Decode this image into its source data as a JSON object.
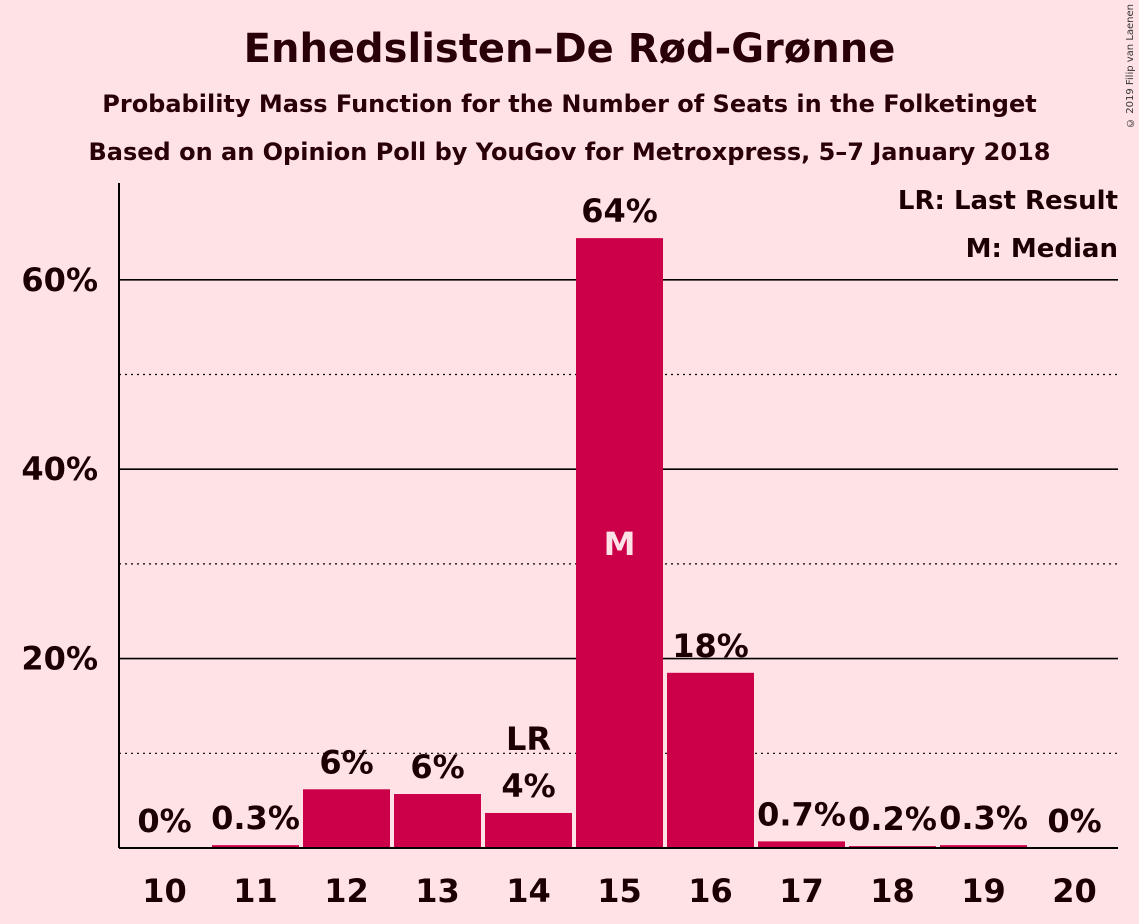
{
  "title": "Enhedslisten–De Rød-Grønne",
  "subtitle": "Probability Mass Function for the Number of Seats in the Folketinget",
  "subtitle2": "Based on an Opinion Poll by YouGov for Metroxpress, 5–7 January 2018",
  "copyright": "© 2019 Filip van Laenen",
  "legend": {
    "last_result": "LR: Last Result",
    "median": "M: Median"
  },
  "colors": {
    "bar": "#CC0049",
    "background": "#FFE2E6"
  },
  "chart_data": {
    "type": "bar",
    "categories": [
      "10",
      "11",
      "12",
      "13",
      "14",
      "15",
      "16",
      "17",
      "18",
      "19",
      "20"
    ],
    "values": [
      0,
      0.3,
      6.2,
      5.7,
      3.7,
      64.4,
      18.5,
      0.7,
      0.2,
      0.3,
      0
    ],
    "data_labels": [
      "0%",
      "0.3%",
      "6%",
      "6%",
      "4%",
      "64%",
      "18%",
      "0.7%",
      "0.2%",
      "0.3%",
      "0%"
    ],
    "y_ticks": [
      20,
      40,
      60
    ],
    "y_tick_labels": [
      "20%",
      "40%",
      "60%"
    ],
    "ylim": [
      0,
      70
    ],
    "grid": "solid at 20% steps, dotted at 10% intermediates",
    "last_result": {
      "category": "14",
      "label": "LR"
    },
    "median": {
      "category": "15",
      "label": "M"
    },
    "legend_position": "top-right"
  }
}
